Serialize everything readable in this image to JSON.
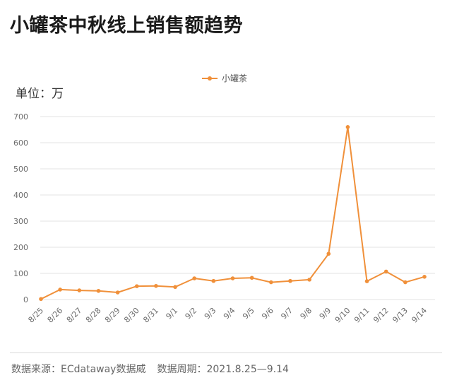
{
  "title": "小罐茶中秋线上销售额趋势",
  "unit_label": "单位：万",
  "footer": {
    "source": "数据来源：ECdataway数据威",
    "period": "数据周期：2021.8.25—9.14"
  },
  "colors": {
    "series": "#F0903A",
    "grid": "#E3E3E3",
    "axis_text": "#6B6B6B"
  },
  "chart_data": {
    "type": "line",
    "title": "小罐茶中秋线上销售额趋势",
    "ylabel": "单位：万",
    "xlabel": "",
    "ylim": [
      0,
      700
    ],
    "yticks": [
      0,
      100,
      200,
      300,
      400,
      500,
      600,
      700
    ],
    "grid": true,
    "legend_position": "top-center",
    "categories": [
      "8/25",
      "8/26",
      "8/27",
      "8/28",
      "8/29",
      "8/30",
      "8/31",
      "9/1",
      "9/2",
      "9/3",
      "9/4",
      "9/5",
      "9/6",
      "9/7",
      "9/8",
      "9/9",
      "9/10",
      "9/11",
      "9/12",
      "9/13",
      "9/14"
    ],
    "series": [
      {
        "name": "小罐茶",
        "values": [
          2,
          38,
          35,
          33,
          27,
          51,
          52,
          48,
          81,
          71,
          81,
          83,
          66,
          71,
          76,
          175,
          660,
          70,
          107,
          66,
          87
        ]
      }
    ]
  }
}
